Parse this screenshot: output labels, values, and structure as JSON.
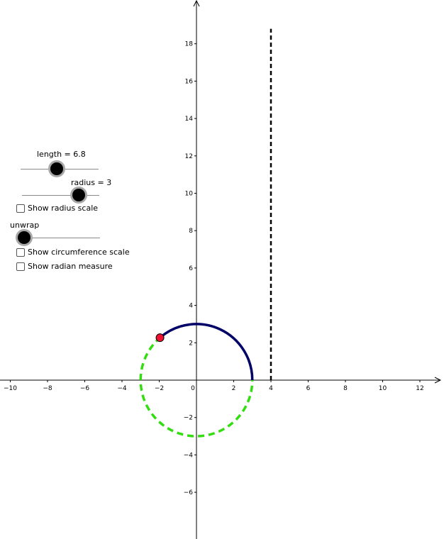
{
  "sliders": {
    "length": {
      "label": "length = 6.8",
      "value": 6.8
    },
    "radius": {
      "label": "radius = 3",
      "value": 3
    },
    "unwrap": {
      "label": "unwrap",
      "value": 0
    }
  },
  "checkboxes": {
    "radius_scale": {
      "label": "Show radius scale",
      "checked": false
    },
    "circumference_scale": {
      "label": "Show circumference scale",
      "checked": false
    },
    "radian_measure": {
      "label": "Show radian measure",
      "checked": false
    }
  },
  "colors": {
    "arc": "#000066",
    "dashed_circle": "#33dd11",
    "point_fill": "#ee1133",
    "vertical_line": "#000000"
  },
  "chart_data": {
    "type": "scatter",
    "x_ticks": [
      -10,
      -8,
      -6,
      -4,
      -2,
      0,
      2,
      4,
      6,
      8,
      10,
      12
    ],
    "y_ticks": [
      -6,
      -4,
      -2,
      2,
      4,
      6,
      8,
      10,
      12,
      14,
      16,
      18
    ],
    "xlim": [
      -10.2,
      13.1
    ],
    "ylim": [
      -8.3,
      20.1
    ],
    "grid": false,
    "circle": {
      "center": [
        0,
        0
      ],
      "radius": 3
    },
    "arc_length": 6.8,
    "point": [
      -1.96,
      2.27
    ],
    "vertical_line_x": 4
  }
}
